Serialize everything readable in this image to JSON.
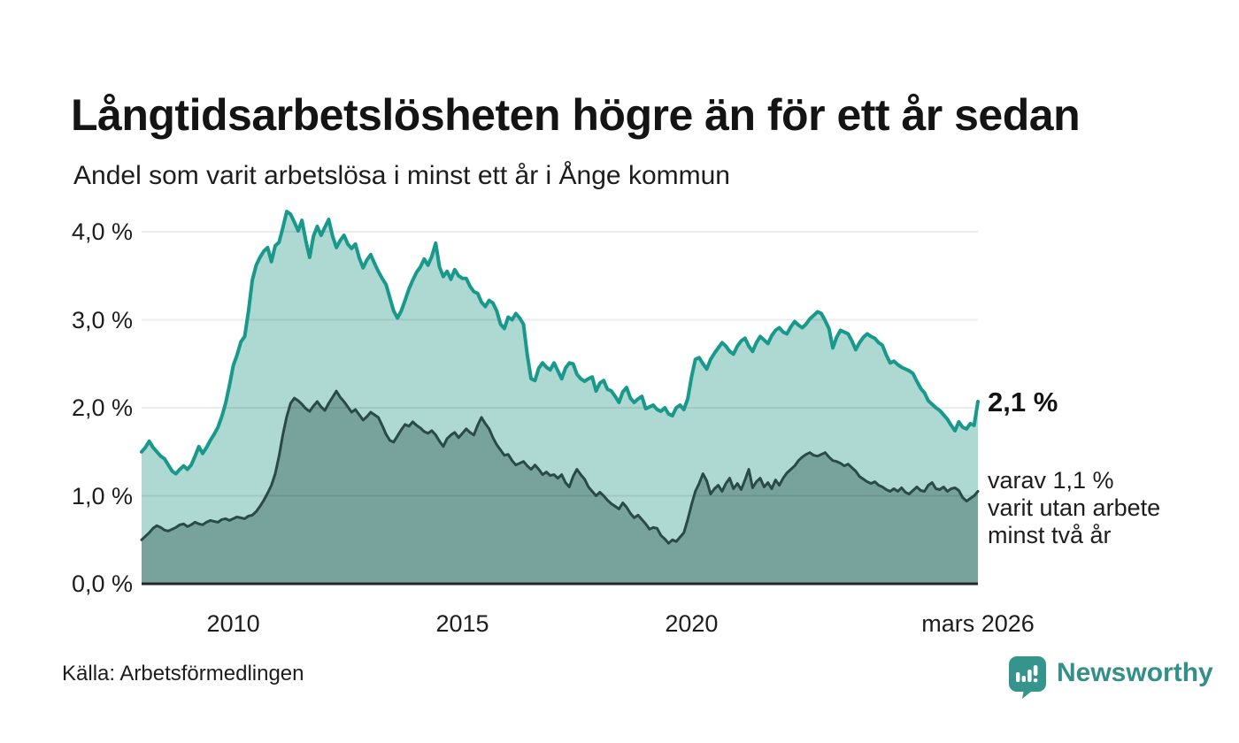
{
  "header": {
    "title": "Långtidsarbetslösheten högre än för ett år sedan",
    "subtitle": "Andel som varit arbetslösa i minst ett år i Ånge kommun"
  },
  "chart_data": {
    "type": "area",
    "title": "Långtidsarbetslösheten högre än för ett år sedan",
    "subtitle": "Andel som varit arbetslösa i minst ett år i Ånge kommun",
    "x_start": 2008,
    "x_step_months": 1,
    "y_max": 4.0,
    "ylim": [
      0,
      4.3
    ],
    "grid": "horizontal",
    "colors": {
      "one_year_line": "#18998b",
      "one_year_fill": "#aed8d2",
      "two_year_line": "#2a4a45",
      "two_year_fill": "#77a39c",
      "baseline": "#262626",
      "gridline": "rgba(0,0,0,0.075)",
      "brand_teal": "#338f87"
    },
    "y_ticks": [
      {
        "value": 4,
        "label": "4,0 %"
      },
      {
        "value": 3,
        "label": "3,0 %"
      },
      {
        "value": 2,
        "label": "2,0 %"
      },
      {
        "value": 1,
        "label": "1,0 %"
      },
      {
        "value": 0,
        "label": "0,0 %"
      }
    ],
    "x_ticks": [
      {
        "year": 2010,
        "label": "2010"
      },
      {
        "year": 2015,
        "label": "2015"
      },
      {
        "year": 2020,
        "label": "2020"
      },
      {
        "year": 2026.25,
        "label": "mars 2026"
      }
    ],
    "series": [
      {
        "name": "Andel arbetslösa minst ett år",
        "values": [
          1.5,
          1.55,
          1.62,
          1.55,
          1.5,
          1.45,
          1.42,
          1.35,
          1.28,
          1.25,
          1.3,
          1.34,
          1.3,
          1.35,
          1.45,
          1.56,
          1.48,
          1.55,
          1.63,
          1.7,
          1.78,
          1.9,
          2.05,
          2.25,
          2.48,
          2.6,
          2.75,
          2.81,
          3.1,
          3.45,
          3.62,
          3.71,
          3.78,
          3.82,
          3.66,
          3.84,
          3.88,
          4.05,
          4.23,
          4.2,
          4.11,
          4.01,
          4.13,
          3.9,
          3.71,
          3.95,
          4.06,
          3.96,
          4.05,
          4.14,
          3.95,
          3.82,
          3.9,
          3.96,
          3.86,
          3.81,
          3.86,
          3.7,
          3.59,
          3.68,
          3.74,
          3.64,
          3.55,
          3.47,
          3.4,
          3.25,
          3.1,
          3.02,
          3.1,
          3.22,
          3.35,
          3.45,
          3.54,
          3.6,
          3.69,
          3.62,
          3.72,
          3.87,
          3.6,
          3.49,
          3.55,
          3.46,
          3.57,
          3.5,
          3.47,
          3.47,
          3.38,
          3.32,
          3.3,
          3.2,
          3.15,
          3.22,
          3.19,
          3.1,
          2.95,
          2.9,
          3.03,
          3.0,
          3.07,
          3.02,
          2.95,
          2.6,
          2.33,
          2.31,
          2.45,
          2.51,
          2.46,
          2.43,
          2.51,
          2.42,
          2.33,
          2.45,
          2.51,
          2.5,
          2.38,
          2.33,
          2.3,
          2.33,
          2.35,
          2.19,
          2.28,
          2.31,
          2.21,
          2.19,
          2.13,
          2.06,
          2.18,
          2.23,
          2.11,
          2.06,
          2.1,
          2.13,
          1.99,
          2.01,
          2.03,
          1.98,
          1.96,
          2.0,
          1.93,
          1.91,
          2.0,
          2.03,
          1.98,
          2.1,
          2.35,
          2.55,
          2.57,
          2.5,
          2.44,
          2.55,
          2.62,
          2.68,
          2.74,
          2.7,
          2.64,
          2.61,
          2.7,
          2.76,
          2.79,
          2.7,
          2.64,
          2.74,
          2.81,
          2.77,
          2.73,
          2.82,
          2.88,
          2.91,
          2.86,
          2.84,
          2.92,
          2.98,
          2.94,
          2.91,
          2.95,
          3.01,
          3.05,
          3.09,
          3.07,
          2.99,
          2.9,
          2.68,
          2.8,
          2.88,
          2.86,
          2.84,
          2.76,
          2.66,
          2.74,
          2.8,
          2.84,
          2.81,
          2.79,
          2.74,
          2.71,
          2.6,
          2.51,
          2.53,
          2.49,
          2.46,
          2.44,
          2.42,
          2.39,
          2.3,
          2.22,
          2.17,
          2.08,
          2.04,
          2.0,
          1.97,
          1.92,
          1.87,
          1.8,
          1.74,
          1.84,
          1.78,
          1.76,
          1.82,
          1.8,
          2.07
        ]
      },
      {
        "name": "varav utan arbete minst två år",
        "values": [
          0.5,
          0.54,
          0.58,
          0.63,
          0.66,
          0.64,
          0.61,
          0.6,
          0.62,
          0.64,
          0.67,
          0.68,
          0.65,
          0.67,
          0.7,
          0.68,
          0.67,
          0.7,
          0.72,
          0.71,
          0.7,
          0.73,
          0.74,
          0.72,
          0.74,
          0.76,
          0.75,
          0.74,
          0.77,
          0.78,
          0.82,
          0.88,
          0.95,
          1.03,
          1.12,
          1.25,
          1.45,
          1.7,
          1.9,
          2.05,
          2.11,
          2.08,
          2.04,
          1.99,
          1.96,
          2.02,
          2.07,
          2.01,
          1.97,
          2.05,
          2.12,
          2.19,
          2.12,
          2.07,
          2.01,
          1.95,
          1.98,
          1.92,
          1.86,
          1.9,
          1.95,
          1.92,
          1.89,
          1.8,
          1.7,
          1.63,
          1.61,
          1.68,
          1.75,
          1.81,
          1.79,
          1.84,
          1.8,
          1.77,
          1.73,
          1.71,
          1.74,
          1.69,
          1.62,
          1.56,
          1.65,
          1.69,
          1.72,
          1.66,
          1.71,
          1.76,
          1.72,
          1.69,
          1.8,
          1.89,
          1.82,
          1.76,
          1.66,
          1.58,
          1.52,
          1.46,
          1.47,
          1.4,
          1.35,
          1.37,
          1.39,
          1.34,
          1.3,
          1.35,
          1.3,
          1.24,
          1.27,
          1.23,
          1.24,
          1.2,
          1.24,
          1.15,
          1.1,
          1.22,
          1.3,
          1.24,
          1.19,
          1.1,
          1.05,
          1.0,
          1.04,
          1.0,
          0.95,
          0.91,
          0.88,
          0.85,
          0.92,
          0.87,
          0.8,
          0.75,
          0.78,
          0.73,
          0.68,
          0.62,
          0.64,
          0.63,
          0.55,
          0.51,
          0.46,
          0.5,
          0.48,
          0.53,
          0.58,
          0.73,
          0.9,
          1.05,
          1.14,
          1.25,
          1.17,
          1.02,
          1.08,
          1.12,
          1.05,
          1.14,
          1.2,
          1.08,
          1.14,
          1.07,
          1.18,
          1.3,
          1.09,
          1.16,
          1.2,
          1.1,
          1.15,
          1.08,
          1.18,
          1.12,
          1.2,
          1.26,
          1.3,
          1.34,
          1.4,
          1.44,
          1.47,
          1.49,
          1.46,
          1.45,
          1.47,
          1.49,
          1.44,
          1.4,
          1.39,
          1.37,
          1.34,
          1.36,
          1.32,
          1.28,
          1.22,
          1.19,
          1.16,
          1.14,
          1.16,
          1.12,
          1.1,
          1.07,
          1.05,
          1.08,
          1.05,
          1.09,
          1.04,
          1.02,
          1.06,
          1.1,
          1.06,
          1.05,
          1.12,
          1.15,
          1.08,
          1.07,
          1.1,
          1.05,
          1.08,
          1.09,
          1.06,
          0.98,
          0.94,
          0.97,
          1.0,
          1.05
        ]
      }
    ],
    "annotations": {
      "latest_one_year": "2,1 %",
      "latest_two_year": "varav 1,1 %\nvarit utan arbete\nminst två år"
    }
  },
  "footer": {
    "source": "Källa: Arbetsförmedlingen",
    "brand": "Newsworthy"
  }
}
